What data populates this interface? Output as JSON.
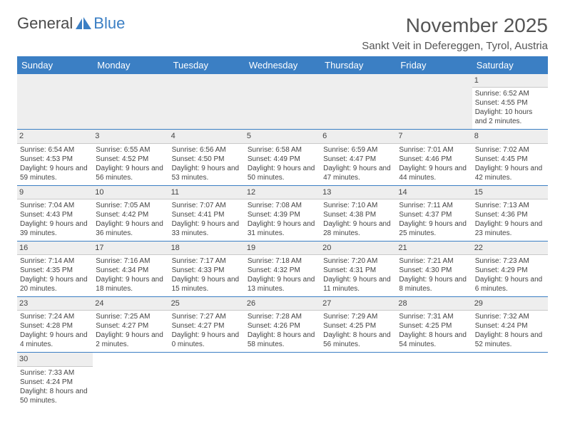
{
  "logo": {
    "text1": "General",
    "text2": "Blue"
  },
  "title": "November 2025",
  "location": "Sankt Veit in Defereggen, Tyrol, Austria",
  "colors": {
    "header_bg": "#3b7fc4",
    "header_text": "#ffffff",
    "daynum_bg": "#eeeeee",
    "row_border": "#3b7fc4",
    "text": "#444444",
    "page_bg": "#ffffff"
  },
  "weekdays": [
    "Sunday",
    "Monday",
    "Tuesday",
    "Wednesday",
    "Thursday",
    "Friday",
    "Saturday"
  ],
  "weeks": [
    [
      null,
      null,
      null,
      null,
      null,
      null,
      {
        "n": "1",
        "sr": "6:52 AM",
        "ss": "4:55 PM",
        "dl": "10 hours and 2 minutes."
      }
    ],
    [
      {
        "n": "2",
        "sr": "6:54 AM",
        "ss": "4:53 PM",
        "dl": "9 hours and 59 minutes."
      },
      {
        "n": "3",
        "sr": "6:55 AM",
        "ss": "4:52 PM",
        "dl": "9 hours and 56 minutes."
      },
      {
        "n": "4",
        "sr": "6:56 AM",
        "ss": "4:50 PM",
        "dl": "9 hours and 53 minutes."
      },
      {
        "n": "5",
        "sr": "6:58 AM",
        "ss": "4:49 PM",
        "dl": "9 hours and 50 minutes."
      },
      {
        "n": "6",
        "sr": "6:59 AM",
        "ss": "4:47 PM",
        "dl": "9 hours and 47 minutes."
      },
      {
        "n": "7",
        "sr": "7:01 AM",
        "ss": "4:46 PM",
        "dl": "9 hours and 44 minutes."
      },
      {
        "n": "8",
        "sr": "7:02 AM",
        "ss": "4:45 PM",
        "dl": "9 hours and 42 minutes."
      }
    ],
    [
      {
        "n": "9",
        "sr": "7:04 AM",
        "ss": "4:43 PM",
        "dl": "9 hours and 39 minutes."
      },
      {
        "n": "10",
        "sr": "7:05 AM",
        "ss": "4:42 PM",
        "dl": "9 hours and 36 minutes."
      },
      {
        "n": "11",
        "sr": "7:07 AM",
        "ss": "4:41 PM",
        "dl": "9 hours and 33 minutes."
      },
      {
        "n": "12",
        "sr": "7:08 AM",
        "ss": "4:39 PM",
        "dl": "9 hours and 31 minutes."
      },
      {
        "n": "13",
        "sr": "7:10 AM",
        "ss": "4:38 PM",
        "dl": "9 hours and 28 minutes."
      },
      {
        "n": "14",
        "sr": "7:11 AM",
        "ss": "4:37 PM",
        "dl": "9 hours and 25 minutes."
      },
      {
        "n": "15",
        "sr": "7:13 AM",
        "ss": "4:36 PM",
        "dl": "9 hours and 23 minutes."
      }
    ],
    [
      {
        "n": "16",
        "sr": "7:14 AM",
        "ss": "4:35 PM",
        "dl": "9 hours and 20 minutes."
      },
      {
        "n": "17",
        "sr": "7:16 AM",
        "ss": "4:34 PM",
        "dl": "9 hours and 18 minutes."
      },
      {
        "n": "18",
        "sr": "7:17 AM",
        "ss": "4:33 PM",
        "dl": "9 hours and 15 minutes."
      },
      {
        "n": "19",
        "sr": "7:18 AM",
        "ss": "4:32 PM",
        "dl": "9 hours and 13 minutes."
      },
      {
        "n": "20",
        "sr": "7:20 AM",
        "ss": "4:31 PM",
        "dl": "9 hours and 11 minutes."
      },
      {
        "n": "21",
        "sr": "7:21 AM",
        "ss": "4:30 PM",
        "dl": "9 hours and 8 minutes."
      },
      {
        "n": "22",
        "sr": "7:23 AM",
        "ss": "4:29 PM",
        "dl": "9 hours and 6 minutes."
      }
    ],
    [
      {
        "n": "23",
        "sr": "7:24 AM",
        "ss": "4:28 PM",
        "dl": "9 hours and 4 minutes."
      },
      {
        "n": "24",
        "sr": "7:25 AM",
        "ss": "4:27 PM",
        "dl": "9 hours and 2 minutes."
      },
      {
        "n": "25",
        "sr": "7:27 AM",
        "ss": "4:27 PM",
        "dl": "9 hours and 0 minutes."
      },
      {
        "n": "26",
        "sr": "7:28 AM",
        "ss": "4:26 PM",
        "dl": "8 hours and 58 minutes."
      },
      {
        "n": "27",
        "sr": "7:29 AM",
        "ss": "4:25 PM",
        "dl": "8 hours and 56 minutes."
      },
      {
        "n": "28",
        "sr": "7:31 AM",
        "ss": "4:25 PM",
        "dl": "8 hours and 54 minutes."
      },
      {
        "n": "29",
        "sr": "7:32 AM",
        "ss": "4:24 PM",
        "dl": "8 hours and 52 minutes."
      }
    ],
    [
      {
        "n": "30",
        "sr": "7:33 AM",
        "ss": "4:24 PM",
        "dl": "8 hours and 50 minutes."
      },
      null,
      null,
      null,
      null,
      null,
      null
    ]
  ],
  "labels": {
    "sunrise": "Sunrise:",
    "sunset": "Sunset:",
    "daylight": "Daylight:"
  }
}
